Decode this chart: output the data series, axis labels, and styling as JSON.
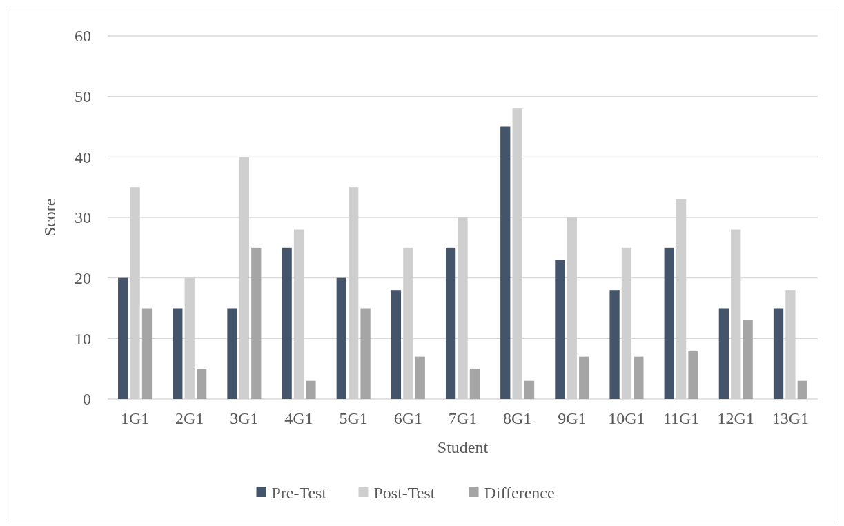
{
  "chart_data": {
    "type": "bar",
    "xlabel": "Student",
    "ylabel": "Score",
    "categories": [
      "1G1",
      "2G1",
      "3G1",
      "4G1",
      "5G1",
      "6G1",
      "7G1",
      "8G1",
      "9G1",
      "10G1",
      "11G1",
      "12G1",
      "13G1"
    ],
    "series": [
      {
        "name": "Pre-Test",
        "color": "#44546a",
        "values": [
          20,
          15,
          15,
          25,
          20,
          18,
          25,
          45,
          23,
          18,
          25,
          15,
          15
        ]
      },
      {
        "name": "Post-Test",
        "color": "#d0cfd0",
        "values": [
          35,
          20,
          40,
          28,
          35,
          25,
          30,
          48,
          30,
          25,
          33,
          28,
          18
        ]
      },
      {
        "name": "Difference",
        "color": "#a5a5a5",
        "values": [
          15,
          5,
          25,
          3,
          15,
          7,
          5,
          3,
          7,
          7,
          8,
          13,
          3
        ]
      }
    ],
    "ylim": [
      0,
      60
    ],
    "yticks": [
      0,
      10,
      20,
      30,
      40,
      50,
      60
    ],
    "grid": "y",
    "legend": "bottom"
  }
}
